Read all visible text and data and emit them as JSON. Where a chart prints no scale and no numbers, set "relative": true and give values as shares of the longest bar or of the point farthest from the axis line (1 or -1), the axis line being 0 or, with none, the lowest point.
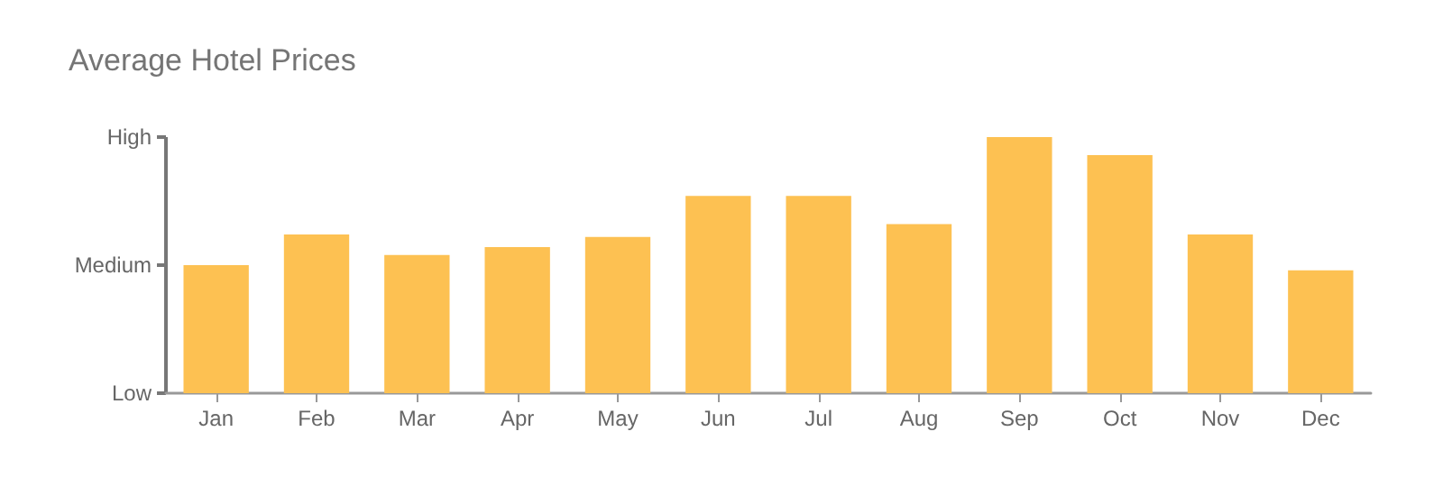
{
  "chart_data": {
    "type": "bar",
    "title": "Average Hotel Prices",
    "categories": [
      "Jan",
      "Feb",
      "Mar",
      "Apr",
      "May",
      "Jun",
      "Jul",
      "Aug",
      "Sep",
      "Oct",
      "Nov",
      "Dec"
    ],
    "values": [
      0.5,
      0.62,
      0.54,
      0.57,
      0.61,
      0.77,
      0.77,
      0.66,
      1,
      0.93,
      0.62,
      0.48
    ],
    "color": "#fdc152",
    "relative": true,
    "annotations": [
      "Low",
      "Medium",
      "High"
    ]
  }
}
